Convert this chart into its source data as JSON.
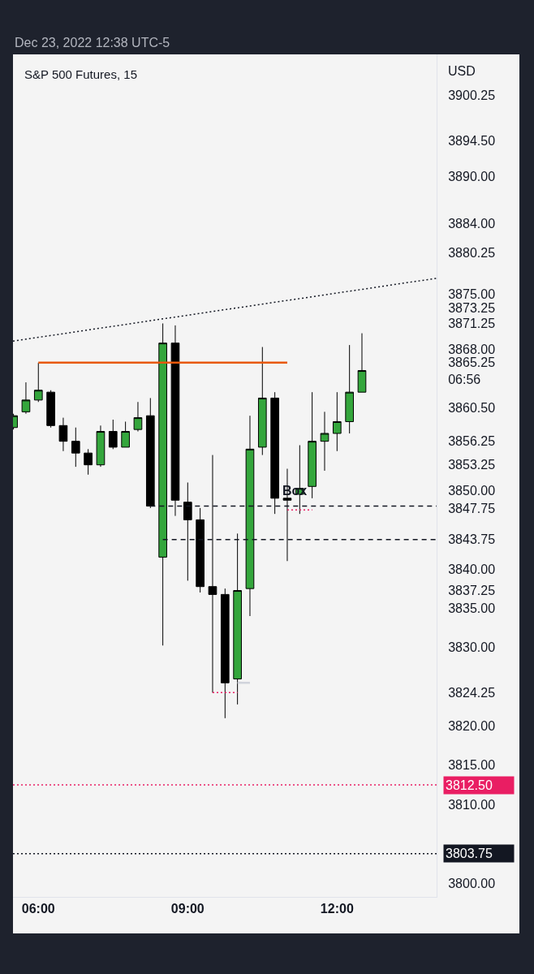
{
  "chart_data": {
    "type": "candlestick",
    "title": "S&P 500 Futures, 15",
    "subtitle": "Dec 23, 2022 12:38 UTC-5",
    "ylabel": "USD",
    "xlim": [
      5.49,
      14.0
    ],
    "xticks": [
      {
        "value": 6,
        "label": "06:00"
      },
      {
        "value": 9,
        "label": "09:00"
      },
      {
        "value": 12,
        "label": "12:00"
      }
    ],
    "ylim": [
      3798.25,
      3905.5
    ],
    "yticks": [
      {
        "value": 3900.25,
        "label": "3900.25"
      },
      {
        "value": 3894.5,
        "label": "3894.50"
      },
      {
        "value": 3890,
        "label": "3890.00"
      },
      {
        "value": 3884,
        "label": "3884.00"
      },
      {
        "value": 3880.25,
        "label": "3880.25"
      },
      {
        "value": 3875,
        "label": "3875.00"
      },
      {
        "value": 3873.25,
        "label": "3873.25"
      },
      {
        "value": 3871.25,
        "label": "3871.25"
      },
      {
        "value": 3868,
        "label": "3868.00"
      },
      {
        "value": 3865.25,
        "label": "3865.25\n06:56"
      },
      {
        "value": 3860.5,
        "label": "3860.50"
      },
      {
        "value": 3856.25,
        "label": "3856.25"
      },
      {
        "value": 3853.25,
        "label": "3853.25"
      },
      {
        "value": 3850,
        "label": "3850.00"
      },
      {
        "value": 3847.75,
        "label": "3847.75"
      },
      {
        "value": 3843.75,
        "label": "3843.75"
      },
      {
        "value": 3840,
        "label": "3840.00"
      },
      {
        "value": 3837.25,
        "label": "3837.25"
      },
      {
        "value": 3835,
        "label": "3835.00"
      },
      {
        "value": 3830,
        "label": "3830.00"
      },
      {
        "value": 3824.25,
        "label": "3824.25"
      },
      {
        "value": 3820,
        "label": "3820.00"
      },
      {
        "value": 3815,
        "label": "3815.00"
      },
      {
        "value": 3810,
        "label": "3810.00"
      },
      {
        "value": 3800,
        "label": "3800.00"
      }
    ],
    "series": [
      {
        "x": [
          5.5,
          5.75,
          6.0,
          6.25,
          6.5,
          6.75,
          7.0,
          7.25,
          7.5,
          7.75,
          8.0,
          8.25,
          8.5,
          8.75,
          9.0,
          9.25,
          9.5,
          9.75,
          10.0,
          10.25,
          10.5,
          10.75,
          11.0,
          11.25,
          11.5,
          11.75,
          12.0,
          12.25,
          12.5
        ],
        "ohlc": [
          [
            3858.0,
            3859.75,
            3857.75,
            3859.5
          ],
          [
            3860.0,
            3863.75,
            3859.75,
            3861.5
          ],
          [
            3861.5,
            3866.25,
            3861.25,
            3862.75
          ],
          [
            3862.5,
            3862.75,
            3858.0,
            3858.25
          ],
          [
            3858.25,
            3859.25,
            3855.0,
            3856.25
          ],
          [
            3856.25,
            3858.0,
            3853.0,
            3854.75
          ],
          [
            3854.75,
            3855.25,
            3852.0,
            3853.25
          ],
          [
            3853.25,
            3858.25,
            3853.0,
            3857.5
          ],
          [
            3857.5,
            3859.0,
            3855.25,
            3855.5
          ],
          [
            3855.5,
            3858.75,
            3855.5,
            3857.5
          ],
          [
            3857.75,
            3861.25,
            3857.5,
            3859.25
          ],
          [
            3859.5,
            3861.75,
            3847.75,
            3848.0
          ],
          [
            3841.5,
            3871.25,
            3830.25,
            3868.75
          ],
          [
            3868.75,
            3871.0,
            3846.75,
            3848.75
          ],
          [
            3848.5,
            3851.0,
            3838.5,
            3846.25
          ],
          [
            3846.25,
            3847.75,
            3837.0,
            3837.75
          ],
          [
            3837.75,
            3854.5,
            3824.25,
            3836.75
          ],
          [
            3836.75,
            3837.5,
            3821.0,
            3825.5
          ],
          [
            3826.0,
            3844.5,
            3822.75,
            3837.25
          ],
          [
            3837.5,
            3859.5,
            3834.0,
            3855.25
          ],
          [
            3855.5,
            3868.25,
            3854.5,
            3861.75
          ],
          [
            3861.75,
            3862.5,
            3847.0,
            3849.0
          ],
          [
            3849.0,
            3852.75,
            3841.0,
            3848.75
          ],
          [
            3849.5,
            3855.75,
            3847.0,
            3850.25
          ],
          [
            3850.5,
            3862.5,
            3849.0,
            3856.25
          ],
          [
            3856.25,
            3860.0,
            3852.5,
            3857.25
          ],
          [
            3857.25,
            3862.5,
            3855.0,
            3858.75
          ],
          [
            3858.75,
            3868.5,
            3857.25,
            3862.5
          ],
          [
            3862.5,
            3870.0,
            3862.5,
            3865.25
          ]
        ],
        "colors": [
          "#34a63c",
          "#34a63c",
          "#34a63c",
          "#000000",
          "#000000",
          "#000000",
          "#000000",
          "#34a63c",
          "#000000",
          "#34a63c",
          "#34a63c",
          "#000000",
          "#34a63c",
          "#000000",
          "#000000",
          "#000000",
          "#000000",
          "#000000",
          "#34a63c",
          "#34a63c",
          "#34a63c",
          "#000000",
          "#000000",
          "#34a63c",
          "#34a63c",
          "#34a63c",
          "#34a63c",
          "#34a63c",
          "#34a63c"
        ]
      },
      {
        "type": "line",
        "x": [
          5.49,
          14.0
        ],
        "values": [
          3869,
          3877
        ],
        "color": "#131722",
        "line_style": "dotted"
      },
      {
        "type": "line",
        "x": [
          6.0,
          11.0
        ],
        "values": [
          3866.25,
          3866.25
        ],
        "color": "#e8590c",
        "line_style": "solid"
      },
      {
        "type": "line",
        "x": [
          8.25,
          14.0
        ],
        "values": [
          3848,
          3848
        ],
        "color": "#131722",
        "line_style": "dashed"
      },
      {
        "type": "line",
        "x": [
          8.5,
          14.0
        ],
        "values": [
          3843.75,
          3843.75
        ],
        "color": "#131722",
        "line_style": "dashed"
      },
      {
        "type": "line",
        "x": [
          11.0,
          11.5
        ],
        "values": [
          3847.5,
          3847.5
        ],
        "color": "#e91e63",
        "line_style": "dotted"
      },
      {
        "type": "line",
        "x": [
          9.5,
          10.0
        ],
        "values": [
          3824.25,
          3824.25
        ],
        "color": "#e91e63",
        "line_style": "dotted"
      },
      {
        "type": "line",
        "x": [
          10.0,
          10.25
        ],
        "values": [
          3825.5,
          3825.5
        ],
        "color": "#d1d4dc",
        "line_style": "solid"
      }
    ],
    "ref_lines": [
      {
        "axis": "y",
        "value": 3812.5,
        "label": "3812.50",
        "color": "#e91e63",
        "line_style": "dotted"
      },
      {
        "axis": "y",
        "value": 3803.75,
        "label": "3803.75",
        "color": "#131722",
        "line_style": "dotted"
      }
    ],
    "annotations": [
      {
        "text": "Box",
        "x": 11.15,
        "y": 3850.0
      }
    ]
  }
}
